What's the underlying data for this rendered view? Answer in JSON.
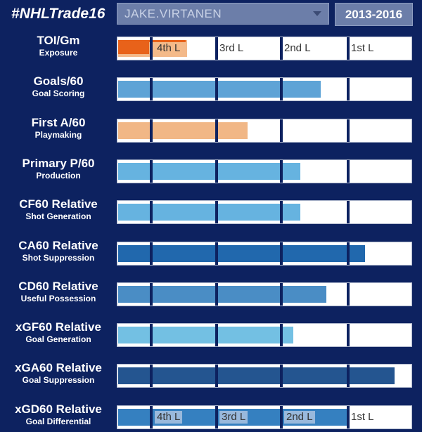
{
  "header": {
    "hashtag": "#NHLTrade16",
    "player_select_value": "JAKE.VIRTANEN",
    "season_label": "2013-2016"
  },
  "quartile_labels": [
    "4th L",
    "3rd L",
    "2nd L",
    "1st L"
  ],
  "metrics": [
    {
      "title": "TOI/Gm",
      "subtitle": "Exposure",
      "value_fraction": 0.235,
      "color": "#f3b98a",
      "show_quartile_labels": true
    },
    {
      "title": "Goals/60",
      "subtitle": "Goal Scoring",
      "value_fraction": 0.693,
      "color": "#5ea3d6"
    },
    {
      "title": "First A/60",
      "subtitle": "Playmaking",
      "value_fraction": 0.443,
      "color": "#f1b786"
    },
    {
      "title": "Primary P/60",
      "subtitle": "Production",
      "value_fraction": 0.622,
      "color": "#66b3e0"
    },
    {
      "title": "CF60 Relative",
      "subtitle": "Shot Generation",
      "value_fraction": 0.622,
      "color": "#66b3e0"
    },
    {
      "title": "CA60 Relative",
      "subtitle": "Shot Suppression",
      "value_fraction": 0.843,
      "color": "#2168ad"
    },
    {
      "title": "CD60 Relative",
      "subtitle": "Useful Possession",
      "value_fraction": 0.712,
      "color": "#4a8dc5"
    },
    {
      "title": "xGF60 Relative",
      "subtitle": "Goal Generation",
      "value_fraction": 0.598,
      "color": "#73c0e3"
    },
    {
      "title": "xGA60 Relative",
      "subtitle": "Goal Suppression",
      "value_fraction": 0.945,
      "color": "#245590"
    },
    {
      "title": "xGD60 Relative",
      "subtitle": "Goal Differential",
      "value_fraction": 0.783,
      "color": "#3580c0",
      "show_quartile_labels": true
    }
  ],
  "colors": {
    "background": "#0d2260",
    "toi_marker": "#e8621a"
  }
}
